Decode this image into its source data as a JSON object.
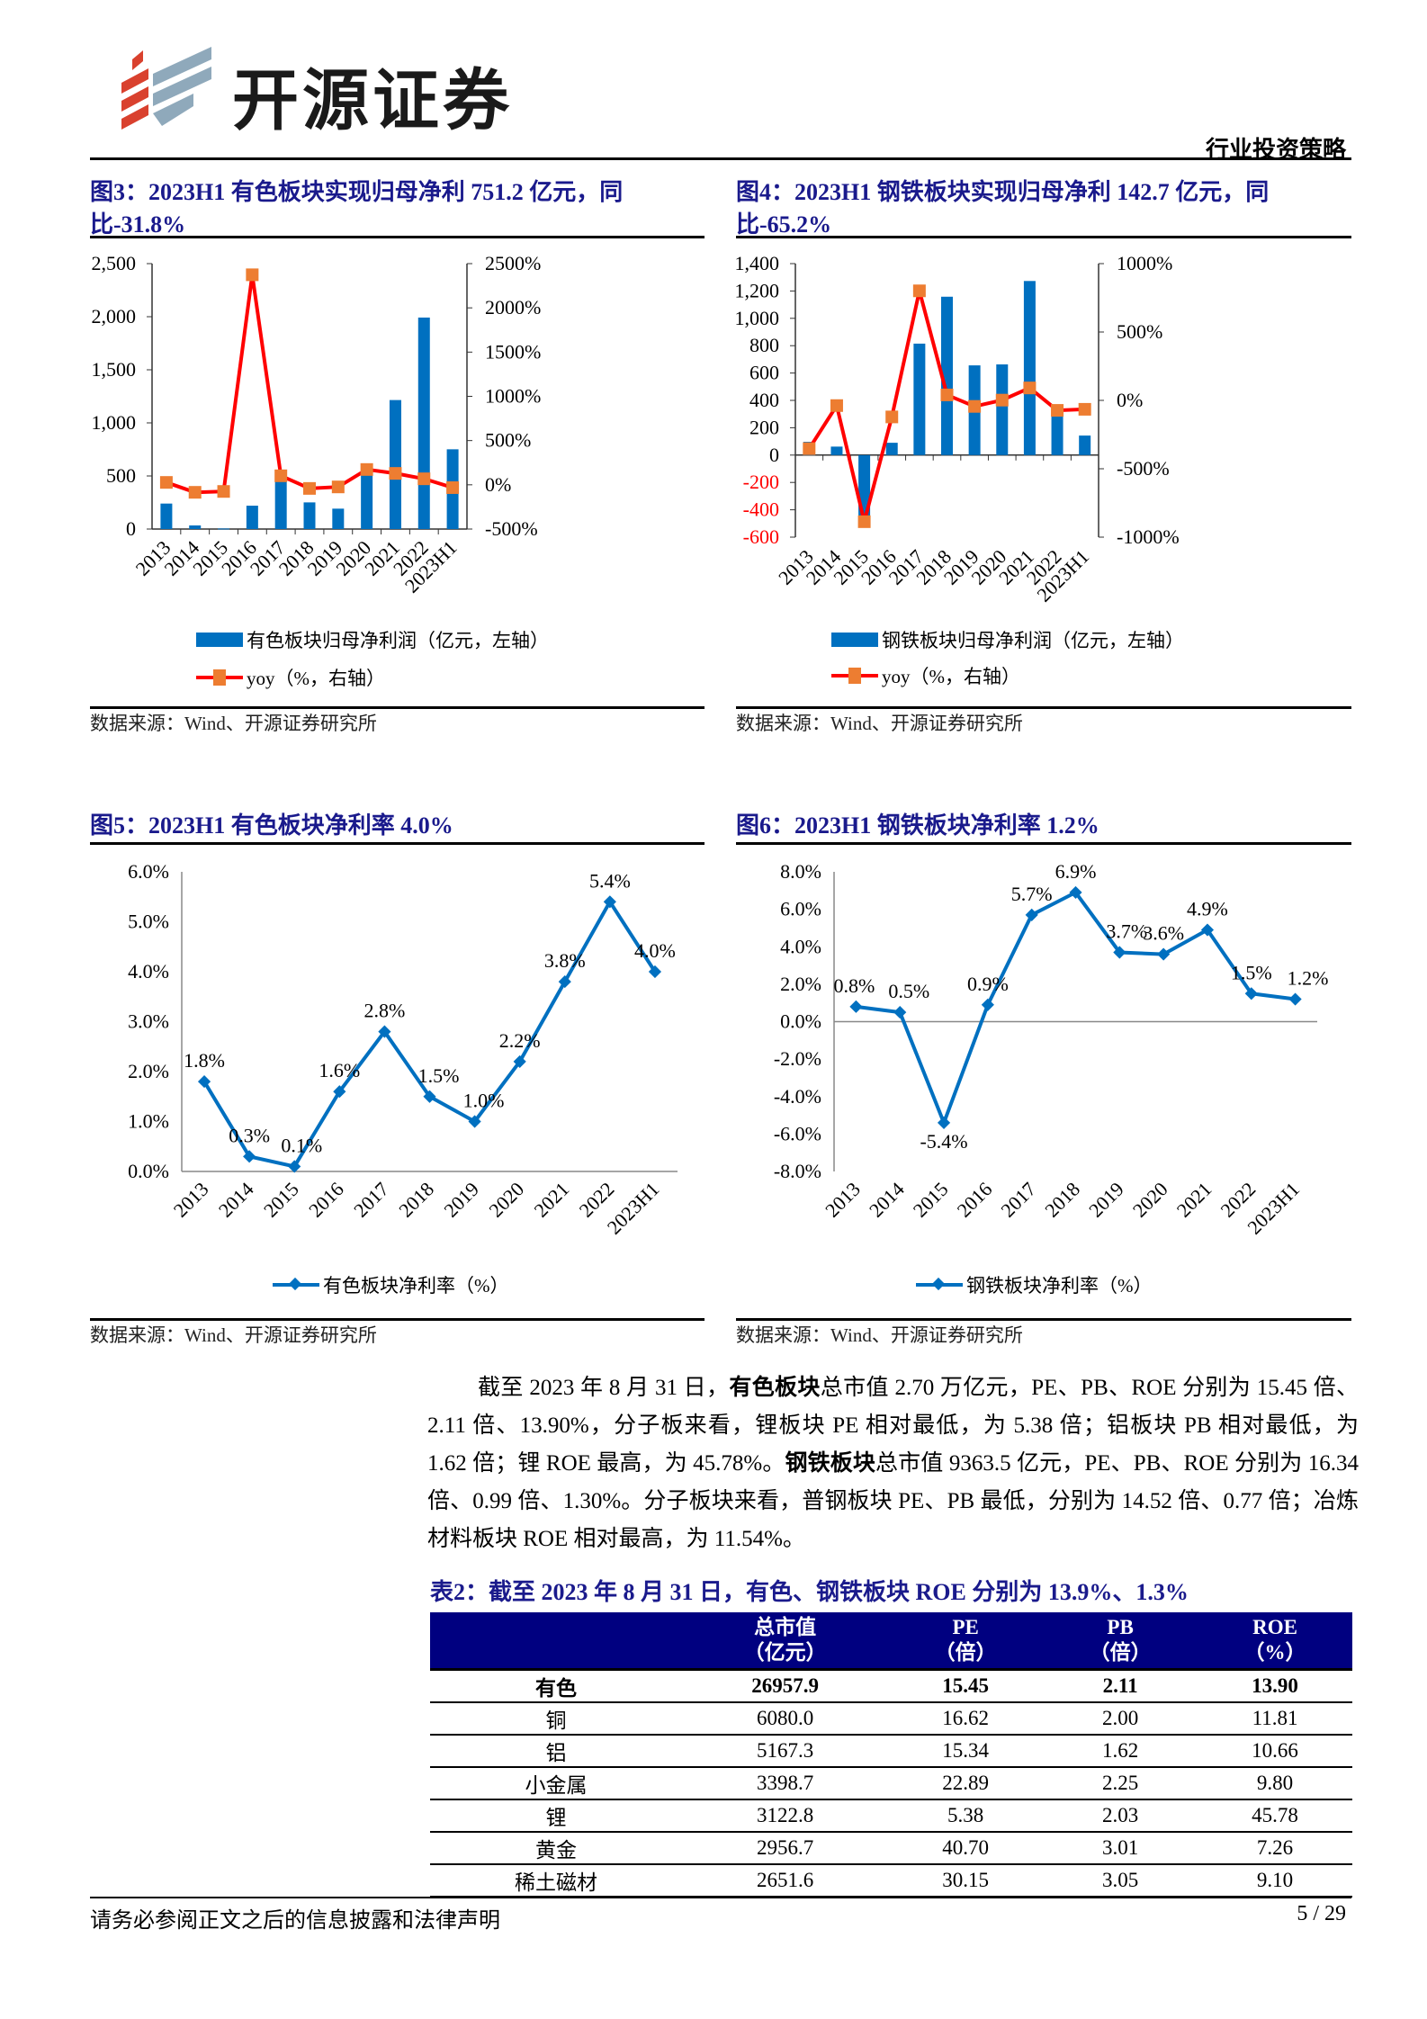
{
  "header": {
    "logo_text": "开源证券",
    "doc_type": "行业投资策略"
  },
  "figures": [
    {
      "title": "图3：2023H1 有色板块实现归母净利 751.2 亿元，同比-31.8%",
      "source": "数据来源：Wind、开源证券研究所",
      "legend": [
        "有色板块归母净利润（亿元，左轴）",
        "yoy（%，右轴）"
      ]
    },
    {
      "title": "图4：2023H1 钢铁板块实现归母净利 142.7 亿元，同比-65.2%",
      "source": "数据来源：Wind、开源证券研究所",
      "legend": [
        "钢铁板块归母净利润（亿元，左轴）",
        "yoy（%，右轴）"
      ]
    },
    {
      "title": "图5：2023H1 有色板块净利率 4.0%",
      "source": "数据来源：Wind、开源证券研究所",
      "legend": [
        "有色板块净利率（%）"
      ]
    },
    {
      "title": "图6：2023H1 钢铁板块净利率 1.2%",
      "source": "数据来源：Wind、开源证券研究所",
      "legend": [
        "钢铁板块净利率（%）"
      ]
    }
  ],
  "chart_data": [
    {
      "type": "bar+line",
      "categories": [
        "2013",
        "2014",
        "2015",
        "2016",
        "2017",
        "2018",
        "2019",
        "2020",
        "2021",
        "2022",
        "2023H1"
      ],
      "series": [
        {
          "name": "有色板块归母净利润（亿元，左轴）",
          "axis": "left",
          "type": "bar",
          "values": [
            240,
            34,
            5,
            220,
            446,
            251,
            192,
            550,
            1215,
            1992,
            751.2
          ]
        },
        {
          "name": "yoy（%，右轴）",
          "axis": "right",
          "type": "line",
          "values": [
            27,
            -85,
            -75,
            2374,
            102,
            -41,
            -24,
            173,
            129,
            68,
            -31.8
          ]
        }
      ],
      "left_ylim": [
        0,
        2500
      ],
      "left_ticks": [
        "0",
        "500",
        "1,000",
        "1,500",
        "2,000",
        "2,500"
      ],
      "right_ylim": [
        -500,
        2500
      ],
      "right_ticks": [
        "-500%",
        "0%",
        "500%",
        "1000%",
        "1500%",
        "2000%",
        "2500%"
      ],
      "legend_position": "bottom",
      "grid": false,
      "colors": {
        "bar": "#0070c0",
        "line": "#ff0000",
        "marker": "#ed7d31"
      }
    },
    {
      "type": "bar+line",
      "categories": [
        "2013",
        "2014",
        "2015",
        "2016",
        "2017",
        "2018",
        "2019",
        "2020",
        "2021",
        "2022",
        "2023H1"
      ],
      "series": [
        {
          "name": "钢铁板块归母净利润（亿元，左轴）",
          "axis": "left",
          "type": "bar",
          "values": [
            97,
            62,
            -482,
            90,
            815,
            1158,
            656,
            663,
            1273,
            366,
            142.7
          ]
        },
        {
          "name": "yoy（%，右轴）",
          "axis": "right",
          "type": "line",
          "values": [
            -353,
            -38,
            -887,
            -121,
            801,
            40,
            -44,
            2,
            91,
            -73,
            -65.2
          ]
        }
      ],
      "left_ylim": [
        -600,
        1400
      ],
      "left_ticks": [
        "-600",
        "-400",
        "-200",
        "0",
        "200",
        "400",
        "600",
        "800",
        "1,000",
        "1,200",
        "1,400"
      ],
      "right_ylim": [
        -1000,
        1000
      ],
      "right_ticks": [
        "-1000%",
        "-500%",
        "0%",
        "500%",
        "1000%"
      ],
      "legend_position": "bottom",
      "grid": false,
      "colors": {
        "bar": "#0070c0",
        "line": "#ff0000",
        "marker": "#ed7d31",
        "negative_tick": "#ff0000"
      }
    },
    {
      "type": "line",
      "categories": [
        "2013",
        "2014",
        "2015",
        "2016",
        "2017",
        "2018",
        "2019",
        "2020",
        "2021",
        "2022",
        "2023H1"
      ],
      "series": [
        {
          "name": "有色板块净利率（%）",
          "values": [
            1.8,
            0.3,
            0.1,
            1.6,
            2.8,
            1.5,
            1.0,
            2.2,
            3.8,
            5.4,
            4.0
          ],
          "labels": [
            "1.8%",
            "0.3%",
            "0.1%",
            "1.6%",
            "2.8%",
            "1.5%",
            "1.0%",
            "2.2%",
            "3.8%",
            "5.4%",
            "4.0%"
          ]
        }
      ],
      "ylim": [
        0,
        6
      ],
      "yticks": [
        "0.0%",
        "1.0%",
        "2.0%",
        "3.0%",
        "4.0%",
        "5.0%",
        "6.0%"
      ],
      "legend_position": "bottom",
      "grid": false,
      "colors": {
        "line": "#0070c0"
      }
    },
    {
      "type": "line",
      "categories": [
        "2013",
        "2014",
        "2015",
        "2016",
        "2017",
        "2018",
        "2019",
        "2020",
        "2021",
        "2022",
        "2023H1"
      ],
      "series": [
        {
          "name": "钢铁板块净利率（%）",
          "values": [
            0.8,
            0.5,
            -5.4,
            0.9,
            5.7,
            6.9,
            3.7,
            3.6,
            4.9,
            1.5,
            1.2
          ],
          "labels": [
            "0.8%",
            "0.5%",
            "-5.4%",
            "0.9%",
            "5.7%",
            "6.9%",
            "3.7%",
            "3.6%",
            "4.9%",
            "1.5%",
            "1.2%"
          ]
        }
      ],
      "ylim": [
        -8,
        8
      ],
      "yticks": [
        "-8.0%",
        "-6.0%",
        "-4.0%",
        "-2.0%",
        "0.0%",
        "2.0%",
        "4.0%",
        "6.0%",
        "8.0%"
      ],
      "legend_position": "bottom",
      "grid": false,
      "colors": {
        "line": "#0070c0"
      }
    }
  ],
  "paragraph": [
    {
      "text": "截至 2023 年 8 月 31 日，",
      "bold": false
    },
    {
      "text": "有色板块",
      "bold": true
    },
    {
      "text": "总市值 2.70 万亿元，PE、PB、ROE 分别为 15.45 倍、2.11 倍、13.90%，分子板来看，锂板块 PE 相对最低，为 5.38 倍；铝板块 PB 相对最低，为 1.62 倍；锂 ROE 最高，为 45.78%。",
      "bold": false
    },
    {
      "text": "钢铁板块",
      "bold": true
    },
    {
      "text": "总市值 9363.5 亿元，PE、PB、ROE 分别为 16.34 倍、0.99 倍、1.30%。分子板块来看，普钢板块 PE、PB 最低，分别为 14.52 倍、0.77 倍；冶炼材料板块 ROE 相对最高，为 11.54%。",
      "bold": false
    }
  ],
  "table": {
    "title": "表2：截至 2023 年 8 月 31 日，有色、钢铁板块 ROE 分别为 13.9%、1.3%",
    "headers": [
      [
        "",
        ""
      ],
      [
        "总市值",
        "（亿元）"
      ],
      [
        "PE",
        "（倍）"
      ],
      [
        "PB",
        "（倍）"
      ],
      [
        "ROE",
        "（%）"
      ]
    ],
    "rows": [
      [
        "有色",
        "26957.9",
        "15.45",
        "2.11",
        "13.90"
      ],
      [
        "铜",
        "6080.0",
        "16.62",
        "2.00",
        "11.81"
      ],
      [
        "铝",
        "5167.3",
        "15.34",
        "1.62",
        "10.66"
      ],
      [
        "小金属",
        "3398.7",
        "22.89",
        "2.25",
        "9.80"
      ],
      [
        "锂",
        "3122.8",
        "5.38",
        "2.03",
        "45.78"
      ],
      [
        "黄金",
        "2956.7",
        "40.70",
        "3.01",
        "7.26"
      ],
      [
        "稀土磁材",
        "2651.6",
        "30.15",
        "3.05",
        "9.10"
      ]
    ]
  },
  "footer": {
    "disclaimer": "请务必参阅正文之后的信息披露和法律声明",
    "page": "5 / 29"
  }
}
